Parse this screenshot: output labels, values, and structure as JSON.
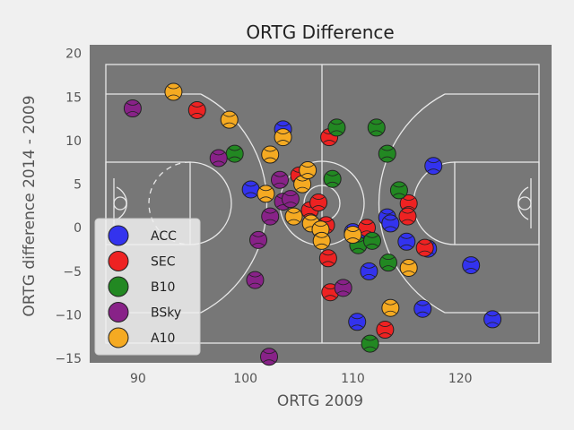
{
  "chart_data": {
    "type": "scatter",
    "title": "ORTG Difference",
    "xlabel": "ORTG 2009",
    "ylabel": "ORTG difference 2014 - 2009",
    "xlim": [
      85.5,
      128.5
    ],
    "ylim": [
      -15.5,
      21
    ],
    "xticks": [
      90,
      100,
      110,
      120
    ],
    "yticks": [
      -15,
      -10,
      -5,
      0,
      5,
      10,
      15,
      20
    ],
    "grid": false,
    "background": "basketball court",
    "legend_position": "lower-left",
    "series": [
      {
        "name": "ACC",
        "color": "#3333ee",
        "points": [
          [
            100.5,
            4.4
          ],
          [
            103.5,
            11.3
          ],
          [
            113.2,
            1.2
          ],
          [
            113.5,
            0.5
          ],
          [
            110.0,
            -0.5
          ],
          [
            110.6,
            -1.6
          ],
          [
            110.4,
            -10.8
          ],
          [
            111.5,
            -5.0
          ],
          [
            115.0,
            -1.6
          ],
          [
            117.0,
            -2.4
          ],
          [
            116.5,
            -9.3
          ],
          [
            117.5,
            7.1
          ],
          [
            121.0,
            -4.3
          ],
          [
            123.0,
            -10.5
          ]
        ]
      },
      {
        "name": "SEC",
        "color": "#ee2222",
        "points": [
          [
            95.5,
            13.5
          ],
          [
            105.0,
            6.0
          ],
          [
            106.0,
            2.0
          ],
          [
            106.8,
            2.9
          ],
          [
            107.5,
            0.3
          ],
          [
            107.8,
            10.4
          ],
          [
            107.7,
            -3.5
          ],
          [
            107.9,
            -7.4
          ],
          [
            111.3,
            0.0
          ],
          [
            113.0,
            -11.7
          ],
          [
            115.2,
            2.8
          ],
          [
            115.1,
            1.3
          ],
          [
            116.7,
            -2.3
          ]
        ]
      },
      {
        "name": "B10",
        "color": "#228822",
        "points": [
          [
            99.0,
            8.5
          ],
          [
            108.1,
            5.6
          ],
          [
            108.5,
            11.5
          ],
          [
            110.5,
            -2.0
          ],
          [
            111.8,
            -1.5
          ],
          [
            112.2,
            11.5
          ],
          [
            113.2,
            8.5
          ],
          [
            114.3,
            4.3
          ],
          [
            113.3,
            -4.0
          ],
          [
            111.6,
            -13.3
          ]
        ]
      },
      {
        "name": "BSky",
        "color": "#882288",
        "points": [
          [
            89.5,
            13.7
          ],
          [
            97.5,
            8.0
          ],
          [
            100.9,
            -6.0
          ],
          [
            101.2,
            -1.4
          ],
          [
            102.3,
            1.3
          ],
          [
            103.2,
            5.5
          ],
          [
            103.5,
            3.0
          ],
          [
            104.2,
            3.3
          ],
          [
            109.1,
            -6.9
          ],
          [
            102.2,
            -14.8
          ]
        ]
      },
      {
        "name": "A10",
        "color": "#f5aa22",
        "points": [
          [
            93.3,
            15.6
          ],
          [
            98.5,
            12.4
          ],
          [
            101.9,
            3.9
          ],
          [
            102.3,
            8.4
          ],
          [
            103.5,
            10.4
          ],
          [
            104.5,
            1.3
          ],
          [
            105.3,
            5.0
          ],
          [
            105.8,
            6.6
          ],
          [
            106.1,
            0.5
          ],
          [
            107.0,
            -0.2
          ],
          [
            107.1,
            -1.5
          ],
          [
            110.0,
            -0.8
          ],
          [
            113.5,
            -9.2
          ],
          [
            115.2,
            -4.6
          ]
        ]
      }
    ]
  }
}
